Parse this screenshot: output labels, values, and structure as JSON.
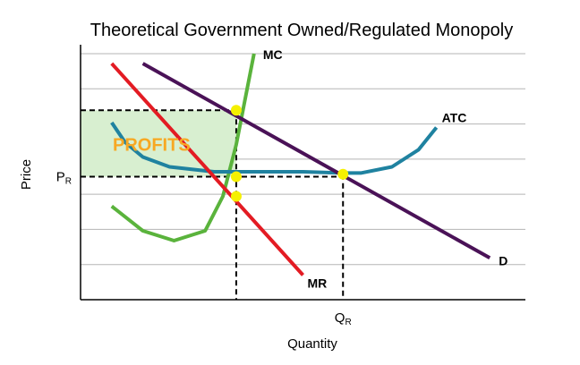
{
  "chart_data": {
    "type": "line",
    "title": "Theoretical Government Owned/Regulated Monopoly",
    "xlabel": "Quantity",
    "ylabel": "Price",
    "xlim": [
      0,
      100
    ],
    "ylim": [
      0,
      100
    ],
    "grid": "horizontal",
    "ticks": {
      "x": [
        {
          "main": "Q",
          "sub": "R",
          "value": 59
        }
      ],
      "y": [
        {
          "main": "P",
          "sub": "R",
          "value": 50
        }
      ]
    },
    "series": [
      {
        "name": "MC",
        "color": "#5ab33c",
        "x": [
          7,
          14,
          21,
          28,
          32,
          35,
          39
        ],
        "y": [
          38,
          28,
          24,
          28,
          42,
          63,
          100
        ]
      },
      {
        "name": "ATC",
        "color": "#1f82a0",
        "x": [
          7,
          10,
          14,
          20,
          30,
          40,
          50,
          59,
          63,
          70,
          76,
          80
        ],
        "y": [
          72,
          64,
          58,
          54,
          52,
          52,
          52,
          51.5,
          51.5,
          54,
          61,
          70
        ]
      },
      {
        "name": "MR",
        "color": "#e31b23",
        "x": [
          7,
          50
        ],
        "y": [
          96,
          10
        ]
      },
      {
        "name": "D",
        "color": "#4a1257",
        "x": [
          14,
          92
        ],
        "y": [
          96,
          17
        ]
      }
    ],
    "annotations": {
      "profits": {
        "text": "PROFITS",
        "color": "#f7a823",
        "fill": "#d8efd0",
        "x": [
          0,
          35
        ],
        "y": [
          50,
          77
        ]
      },
      "points": [
        {
          "x": 35,
          "y": 77
        },
        {
          "x": 35,
          "y": 50
        },
        {
          "x": 35,
          "y": 42
        },
        {
          "x": 59,
          "y": 51
        }
      ]
    }
  }
}
